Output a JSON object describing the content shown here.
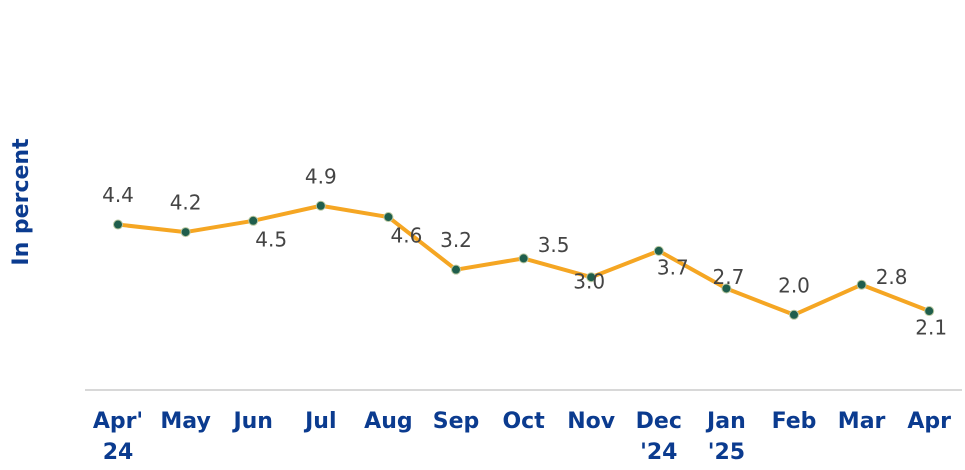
{
  "chart_data": {
    "type": "line",
    "y_label": "In percent",
    "categories": [
      [
        "Apr'",
        "24"
      ],
      [
        "May"
      ],
      [
        "Jun"
      ],
      [
        "Jul"
      ],
      [
        "Aug"
      ],
      [
        "Sep"
      ],
      [
        "Oct"
      ],
      [
        "Nov"
      ],
      [
        "Dec",
        "'24"
      ],
      [
        "Jan",
        "'25"
      ],
      [
        "Feb"
      ],
      [
        "Mar"
      ],
      [
        "Apr"
      ]
    ],
    "series": [
      {
        "color": "#f5a623",
        "marker_color": "#1f5e4c",
        "values": [
          4.4,
          4.2,
          4.5,
          4.9,
          4.6,
          3.2,
          3.5,
          3.0,
          3.7,
          2.7,
          2.0,
          2.8,
          2.1
        ],
        "value_labels": [
          "4.4",
          "4.2",
          "4.5",
          "4.9",
          "4.6",
          "3.2",
          "3.5",
          "3.0",
          "3.7",
          "2.7",
          "2.0",
          "2.8",
          "2.1"
        ]
      }
    ],
    "ylim": [
      0,
      10
    ]
  }
}
